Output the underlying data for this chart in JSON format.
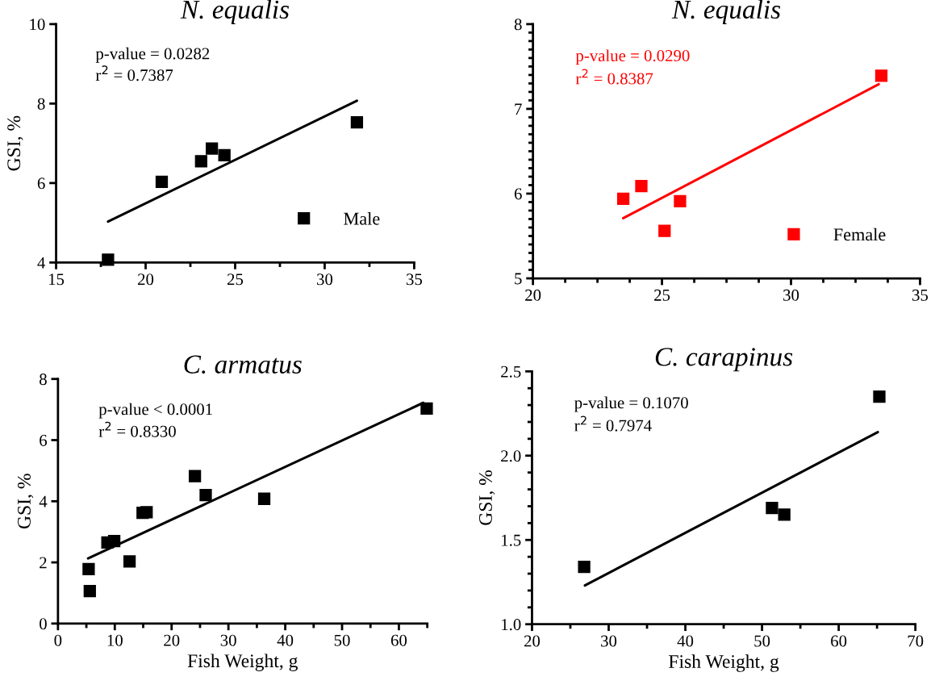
{
  "chart_data": [
    {
      "type": "scatter",
      "title": "N. equalis",
      "ylabel": "GSI, %",
      "xlim": [
        15,
        35
      ],
      "ylim": [
        4,
        10
      ],
      "xticks": [
        15,
        {
          "value": 17.5,
          "label": null
        },
        20,
        {
          "value": 22.5,
          "label": null
        },
        25,
        {
          "value": 27.5,
          "label": null
        },
        30,
        {
          "value": 32.5,
          "label": null
        },
        35
      ],
      "yticks": [
        4,
        6,
        8,
        10
      ],
      "legend": "bottom right",
      "grid": false,
      "annotations": [
        "p-value = 0.0282",
        "r$^{2}$ = 0.7387"
      ],
      "series": [
        {
          "name": "Male",
          "color": "#000000",
          "marker": "square",
          "x": [
            17.9,
            20.9,
            23.1,
            23.7,
            24.4,
            31.8
          ],
          "values": [
            4.07,
            6.03,
            6.55,
            6.87,
            6.7,
            7.53
          ]
        },
        {
          "type": "line",
          "color": "#000000",
          "x": [
            17.9,
            31.8
          ],
          "values": [
            5.03,
            8.07
          ]
        }
      ]
    },
    {
      "type": "scatter",
      "title": "N. equalis",
      "xlim": [
        20,
        35
      ],
      "ylim": [
        5,
        8
      ],
      "xticks": [
        20,
        {
          "value": 21.25,
          "label": null
        },
        {
          "value": 22.5,
          "label": null
        },
        {
          "value": 23.75,
          "label": null
        },
        25,
        {
          "value": 26.25,
          "label": null
        },
        {
          "value": 27.5,
          "label": null
        },
        {
          "value": 28.75,
          "label": null
        },
        30,
        {
          "value": 31.25,
          "label": null
        },
        {
          "value": 32.5,
          "label": null
        },
        {
          "value": 33.75,
          "label": null
        },
        35
      ],
      "yticks": [
        5,
        {
          "value": 5.1,
          "label": null
        },
        {
          "value": 5.2,
          "label": null
        },
        {
          "value": 5.3,
          "label": null
        },
        {
          "value": 5.4,
          "label": null
        },
        {
          "value": 5.5,
          "label": null
        },
        {
          "value": 5.6,
          "label": null
        },
        {
          "value": 5.7,
          "label": null
        },
        {
          "value": 5.8,
          "label": null
        },
        {
          "value": 5.9,
          "label": null
        },
        6,
        {
          "value": 6.1,
          "label": null
        },
        {
          "value": 6.2,
          "label": null
        },
        {
          "value": 6.3,
          "label": null
        },
        {
          "value": 6.4,
          "label": null
        },
        {
          "value": 6.5,
          "label": null
        },
        {
          "value": 6.6,
          "label": null
        },
        {
          "value": 6.7,
          "label": null
        },
        {
          "value": 6.8,
          "label": null
        },
        {
          "value": 6.9,
          "label": null
        },
        7,
        {
          "value": 7.1,
          "label": null
        },
        {
          "value": 7.2,
          "label": null
        },
        {
          "value": 7.3,
          "label": null
        },
        {
          "value": 7.4,
          "label": null
        },
        {
          "value": 7.5,
          "label": null
        },
        {
          "value": 7.6,
          "label": null
        },
        {
          "value": 7.7,
          "label": null
        },
        {
          "value": 7.8,
          "label": null
        },
        {
          "value": 7.9,
          "label": null
        },
        8
      ],
      "legend": "bottom right",
      "grid": false,
      "annotations": [
        "p-value = 0.0290",
        "r$^{2}$ = 0.8387"
      ],
      "series": [
        {
          "name": "Female",
          "color": "#ff0000",
          "marker": "square",
          "x": [
            23.5,
            24.2,
            25.1,
            25.7,
            33.5
          ],
          "values": [
            5.94,
            6.09,
            5.56,
            5.91,
            7.39
          ]
        },
        {
          "type": "line",
          "color": "#ff0000",
          "x": [
            23.5,
            33.4
          ],
          "values": [
            5.71,
            7.29
          ]
        }
      ]
    },
    {
      "type": "scatter",
      "title": "C. armatus",
      "xlabel": "Fish Weight, g",
      "ylabel": "GSI, %",
      "xlim": [
        0,
        65
      ],
      "ylim": [
        0,
        8
      ],
      "xticks": [
        0,
        {
          "value": 5,
          "label": null
        },
        10,
        {
          "value": 15,
          "label": null
        },
        20,
        {
          "value": 25,
          "label": null
        },
        30,
        {
          "value": 35,
          "label": null
        },
        40,
        {
          "value": 45,
          "label": null
        },
        50,
        {
          "value": 55,
          "label": null
        },
        60,
        {
          "value": 65,
          "label": null
        }
      ],
      "yticks": [
        0,
        2,
        4,
        6,
        8
      ],
      "grid": false,
      "annotations": [
        "p-value < 0.0001",
        "r$^{2}$ = 0.8330"
      ],
      "series": [
        {
          "color": "#000000",
          "marker": "square",
          "x": [
            5.4,
            5.6,
            8.7,
            9.9,
            12.6,
            14.9,
            15.6,
            24.1,
            26.0,
            36.3,
            64.9
          ],
          "values": [
            1.78,
            1.06,
            2.65,
            2.7,
            2.03,
            3.62,
            3.64,
            4.82,
            4.2,
            4.08,
            7.03
          ]
        },
        {
          "type": "line",
          "color": "#000000",
          "x": [
            5.3,
            64.3
          ],
          "values": [
            2.13,
            7.22
          ]
        }
      ]
    },
    {
      "type": "scatter",
      "title": "C. carapinus",
      "xlabel": "Fish Weight, g",
      "ylabel": "GSI, %",
      "xlim": [
        20,
        70
      ],
      "ylim": [
        1.0,
        2.5
      ],
      "xticks": [
        20,
        {
          "value": 25,
          "label": null
        },
        30,
        {
          "value": 35,
          "label": null
        },
        40,
        {
          "value": 45,
          "label": null
        },
        50,
        {
          "value": 55,
          "label": null
        },
        60,
        {
          "value": 65,
          "label": null
        },
        70
      ],
      "yticks": [
        {
          "value": 1.0,
          "label": "1.0"
        },
        {
          "value": 1.1,
          "label": null
        },
        {
          "value": 1.2,
          "label": null
        },
        {
          "value": 1.3,
          "label": null
        },
        {
          "value": 1.4,
          "label": null
        },
        1.5,
        {
          "value": 1.6,
          "label": null
        },
        {
          "value": 1.7,
          "label": null
        },
        {
          "value": 1.8,
          "label": null
        },
        {
          "value": 1.9,
          "label": null
        },
        {
          "value": 2.0,
          "label": "2.0"
        },
        {
          "value": 2.1,
          "label": null
        },
        {
          "value": 2.2,
          "label": null
        },
        {
          "value": 2.3,
          "label": null
        },
        {
          "value": 2.4,
          "label": null
        },
        2.5
      ],
      "grid": false,
      "annotations": [
        "p-value = 0.1070",
        "r$^{2}$ = 0.7974"
      ],
      "series": [
        {
          "color": "#000000",
          "marker": "square",
          "x": [
            26.8,
            51.3,
            52.9,
            65.3
          ],
          "values": [
            1.34,
            1.69,
            1.65,
            2.35
          ]
        },
        {
          "type": "line",
          "color": "#000000",
          "x": [
            26.9,
            65.1
          ],
          "values": [
            1.23,
            2.14
          ]
        }
      ]
    }
  ]
}
